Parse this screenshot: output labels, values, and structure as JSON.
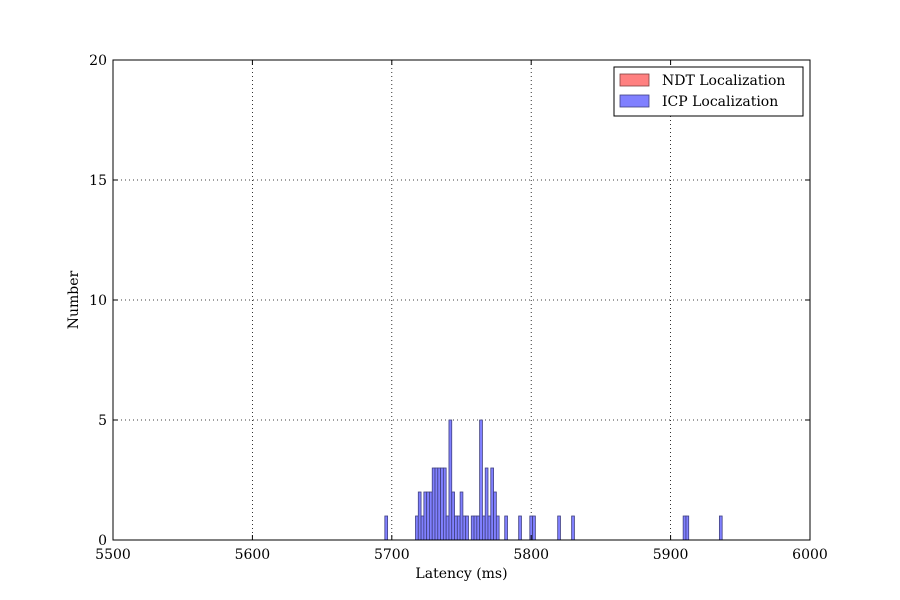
{
  "chart_data": {
    "type": "bar",
    "title": "",
    "xlabel": "Latency (ms)",
    "ylabel": "Number",
    "xlim": [
      5500,
      6000
    ],
    "ylim": [
      0,
      20
    ],
    "xticks": [
      5500,
      5600,
      5700,
      5800,
      5900,
      6000
    ],
    "yticks": [
      0,
      5,
      10,
      15,
      20
    ],
    "grid": true,
    "legend_position": "top-right",
    "bin_width": 2,
    "series": [
      {
        "name": "NDT Localization",
        "color": "#ff8080",
        "edge_color": "#804040",
        "x": [],
        "values": []
      },
      {
        "name": "ICP Localization",
        "color": "#8080ff",
        "edge_color": "#404080",
        "x": [
          5696,
          5718,
          5720,
          5722,
          5724,
          5726,
          5728,
          5730,
          5732,
          5734,
          5736,
          5738,
          5740,
          5742,
          5744,
          5746,
          5748,
          5750,
          5752,
          5754,
          5758,
          5760,
          5762,
          5764,
          5766,
          5768,
          5770,
          5772,
          5774,
          5776,
          5782,
          5792,
          5800,
          5802,
          5820,
          5830,
          5910,
          5912,
          5936
        ],
        "values": [
          1,
          1,
          2,
          1,
          2,
          2,
          2,
          3,
          3,
          3,
          3,
          3,
          1,
          5,
          2,
          1,
          1,
          2,
          1,
          1,
          1,
          1,
          1,
          5,
          1,
          3,
          1,
          3,
          2,
          1,
          1,
          1,
          1,
          1,
          1,
          1,
          1,
          1,
          1
        ]
      }
    ]
  }
}
